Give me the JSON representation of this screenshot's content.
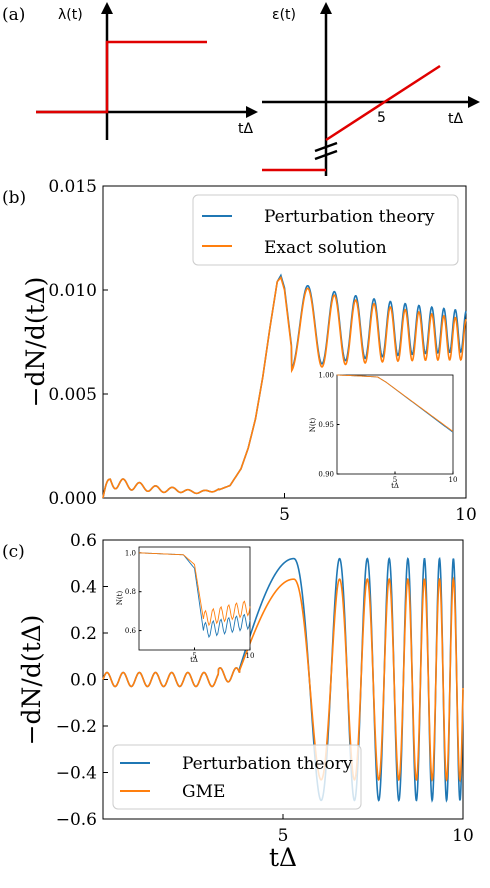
{
  "colors": {
    "red": "#e00000",
    "blue": "#1f77b4",
    "orange": "#ff7f0e",
    "axis": "#000000"
  },
  "panel_a": {
    "label": "(a)",
    "left": {
      "ylabel": "λ(t)",
      "xlabel": "tΔ"
    },
    "right": {
      "ylabel": "ε(t)",
      "xlabel": "tΔ",
      "tick": "5"
    }
  },
  "chart_data": [
    {
      "id": "b",
      "type": "line",
      "panel_label": "(b)",
      "ylabel": "−dN/d(tΔ)",
      "xlabel": "",
      "xlim": [
        0,
        10
      ],
      "ylim": [
        0,
        0.015
      ],
      "xticks": [
        "5",
        "10"
      ],
      "yticks": [
        "0.000",
        "0.005",
        "0.010",
        "0.015"
      ],
      "legend": {
        "placement": "top-right",
        "entries": [
          "Perturbation theory",
          "Exact solution"
        ]
      },
      "series": [
        {
          "name": "Perturbation theory",
          "color": "#1f77b4",
          "x": [
            0,
            0.2,
            0.4,
            0.8,
            1.2,
            1.6,
            2.0,
            2.4,
            2.8,
            3.2,
            3.5,
            3.8,
            4.0,
            4.2,
            4.4,
            4.6,
            4.8,
            4.9,
            5.0,
            5.2,
            5.4,
            5.6,
            5.8,
            6.0,
            6.5,
            7.0,
            8.0,
            9.0,
            10.0
          ],
          "y": [
            0.0,
            0.0008,
            0.0007,
            0.0006,
            0.0005,
            0.0004,
            0.0004,
            0.0003,
            0.0003,
            0.0004,
            0.0006,
            0.0014,
            0.0024,
            0.0038,
            0.0058,
            0.0082,
            0.0104,
            0.0107,
            0.0101,
            0.0072,
            0.0062,
            0.0093,
            0.0068,
            0.009,
            0.008,
            0.0082,
            0.0081,
            0.008,
            0.008
          ]
        },
        {
          "name": "Exact solution",
          "color": "#ff7f0e",
          "x": [
            0,
            0.2,
            0.4,
            0.8,
            1.2,
            1.6,
            2.0,
            2.4,
            2.8,
            3.2,
            3.5,
            3.8,
            4.0,
            4.2,
            4.4,
            4.6,
            4.8,
            4.9,
            5.0,
            5.2,
            5.4,
            5.6,
            5.8,
            6.0,
            6.5,
            7.0,
            8.0,
            9.0,
            10.0
          ],
          "y": [
            0.0,
            0.0008,
            0.0007,
            0.0006,
            0.0005,
            0.0004,
            0.0004,
            0.0003,
            0.0003,
            0.0004,
            0.0006,
            0.0014,
            0.0024,
            0.0038,
            0.0058,
            0.0082,
            0.0104,
            0.0106,
            0.01,
            0.0071,
            0.0061,
            0.009,
            0.0066,
            0.0087,
            0.0077,
            0.0078,
            0.0076,
            0.0074,
            0.0073
          ]
        }
      ],
      "inset": {
        "ylabel": "N(t)",
        "xlabel": "tΔ",
        "xlim": [
          0,
          10
        ],
        "ylim": [
          0.9,
          1.0
        ],
        "xticks": [
          "5",
          "10"
        ],
        "yticks": [
          "0.90",
          "0.95",
          "1.00"
        ],
        "series": [
          {
            "name": "Perturbation theory",
            "color": "#1f77b4",
            "x": [
              0,
              2,
              3.5,
              4.2,
              10
            ],
            "y": [
              1.0,
              0.999,
              0.998,
              0.993,
              0.942
            ]
          },
          {
            "name": "Exact solution",
            "color": "#ff7f0e",
            "x": [
              0,
              2,
              3.5,
              4.2,
              10
            ],
            "y": [
              1.0,
              0.999,
              0.998,
              0.993,
              0.943
            ]
          }
        ]
      }
    },
    {
      "id": "c",
      "type": "line",
      "panel_label": "(c)",
      "ylabel": "−dN/d(tΔ)",
      "xlabel": "tΔ",
      "xlim": [
        0,
        10
      ],
      "ylim": [
        -0.6,
        0.6
      ],
      "xticks": [
        "5",
        "10"
      ],
      "yticks": [
        "0.6",
        "0.4",
        "0.2",
        "0.0",
        "−0.2",
        "−0.4",
        "−0.6"
      ],
      "legend": {
        "placement": "bottom-left",
        "entries": [
          "Perturbation theory",
          "GME"
        ]
      },
      "series": [
        {
          "name": "Perturbation theory",
          "color": "#1f77b4",
          "x": [
            0,
            1,
            2,
            3,
            3.5,
            4.0,
            4.5,
            5.0,
            5.3,
            5.7,
            6.0,
            6.5,
            7.0,
            8.0,
            9.0,
            10.0
          ],
          "y": [
            0.0,
            0.0,
            0.0,
            0.0,
            0.03,
            0.06,
            0.28,
            0.5,
            0.52,
            0.3,
            -0.5,
            0.53,
            -0.53,
            0.53,
            -0.53,
            0.52
          ]
        },
        {
          "name": "GME",
          "color": "#ff7f0e",
          "x": [
            0,
            1,
            2,
            3,
            3.5,
            4.0,
            4.5,
            5.0,
            5.3,
            5.7,
            6.0,
            6.5,
            7.0,
            8.0,
            9.0,
            10.0
          ],
          "y": [
            0.0,
            0.0,
            0.0,
            0.0,
            0.03,
            0.05,
            0.22,
            0.4,
            0.43,
            0.25,
            -0.42,
            0.44,
            -0.44,
            0.44,
            -0.44,
            0.44
          ]
        }
      ],
      "inset": {
        "ylabel": "N(t)",
        "xlabel": "tΔ",
        "xlim": [
          0,
          10
        ],
        "ylim": [
          0.5,
          1.03
        ],
        "xticks": [
          "5",
          "10"
        ],
        "yticks": [
          "0.6",
          "0.8",
          "1.0"
        ],
        "series": [
          {
            "name": "Perturbation theory",
            "color": "#1f77b4",
            "x": [
              0,
              4,
              5,
              5.8,
              10
            ],
            "y": [
              1.0,
              0.99,
              0.92,
              0.6,
              0.65
            ]
          },
          {
            "name": "GME",
            "color": "#ff7f0e",
            "x": [
              0,
              4,
              5,
              5.8,
              10
            ],
            "y": [
              1.0,
              0.99,
              0.94,
              0.66,
              0.72
            ]
          }
        ]
      }
    }
  ]
}
